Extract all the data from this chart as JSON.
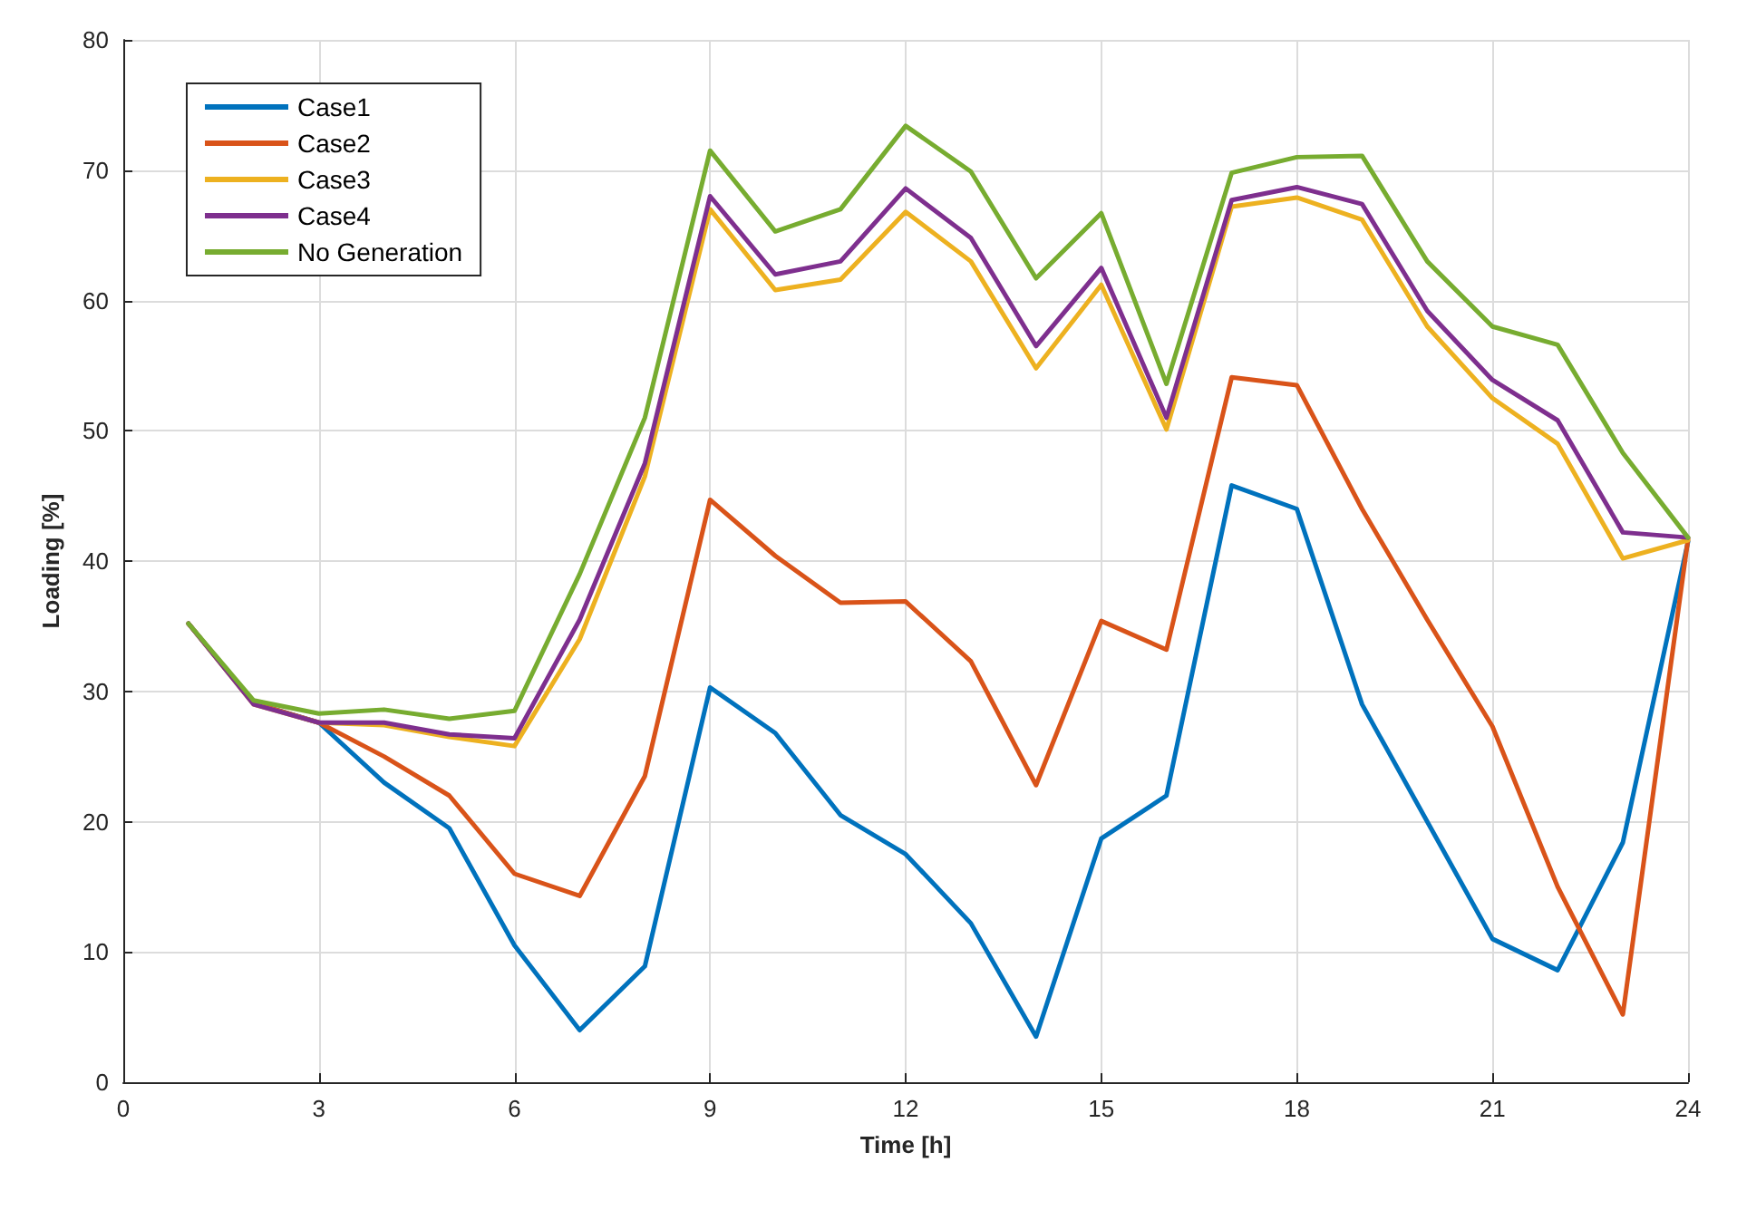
{
  "chart_data": {
    "type": "line",
    "xlabel": "Time [h]",
    "ylabel": "Loading [%]",
    "x": [
      1,
      2,
      3,
      4,
      5,
      6,
      7,
      8,
      9,
      10,
      11,
      12,
      13,
      14,
      15,
      16,
      17,
      18,
      19,
      20,
      21,
      22,
      23,
      24
    ],
    "series": [
      {
        "name": "Case1",
        "color": "#0072bd",
        "values": [
          35.2,
          29.1,
          27.6,
          23,
          19.5,
          10.5,
          4,
          8.9,
          30.3,
          26.8,
          20.5,
          17.5,
          12.2,
          3.5,
          18.7,
          22,
          45.8,
          44,
          29,
          20,
          11,
          8.6,
          18.4,
          41.5
        ]
      },
      {
        "name": "Case2",
        "color": "#d95319",
        "values": [
          35.2,
          29.1,
          27.6,
          25,
          22,
          16,
          14.3,
          23.5,
          44.7,
          40.4,
          36.8,
          36.9,
          32.3,
          22.8,
          35.4,
          33.2,
          54.1,
          53.5,
          44,
          35.5,
          27.3,
          15,
          5.2,
          41.7
        ]
      },
      {
        "name": "Case3",
        "color": "#edb120",
        "values": [
          35.2,
          29,
          27.6,
          27.4,
          26.5,
          25.8,
          34,
          46.5,
          67,
          60.8,
          61.6,
          66.8,
          63,
          54.8,
          61.2,
          50.1,
          67.2,
          67.9,
          66.2,
          58,
          52.5,
          49,
          40.2,
          41.6
        ]
      },
      {
        "name": "Case4",
        "color": "#7e2f8e",
        "values": [
          35.2,
          29,
          27.6,
          27.6,
          26.7,
          26.4,
          35.5,
          47.5,
          68,
          62,
          63,
          68.6,
          64.8,
          56.5,
          62.5,
          51,
          67.7,
          68.7,
          67.4,
          59.2,
          53.9,
          50.8,
          42.2,
          41.8
        ]
      },
      {
        "name": "No Generation",
        "color": "#77ac30",
        "values": [
          35.2,
          29.3,
          28.3,
          28.6,
          27.9,
          28.5,
          39,
          51,
          71.5,
          65.3,
          67,
          73.4,
          69.9,
          61.7,
          66.7,
          53.6,
          69.8,
          71,
          71.1,
          63,
          58,
          56.6,
          48.3,
          41.8
        ]
      }
    ],
    "xlim": [
      0,
      24
    ],
    "xticks": [
      0,
      3,
      6,
      9,
      12,
      15,
      18,
      21,
      24
    ],
    "ylim": [
      0,
      80
    ],
    "yticks": [
      0,
      10,
      20,
      30,
      40,
      50,
      60,
      70,
      80
    ],
    "grid": true,
    "legend": "top left",
    "marker": "none",
    "line_style": "solid"
  }
}
